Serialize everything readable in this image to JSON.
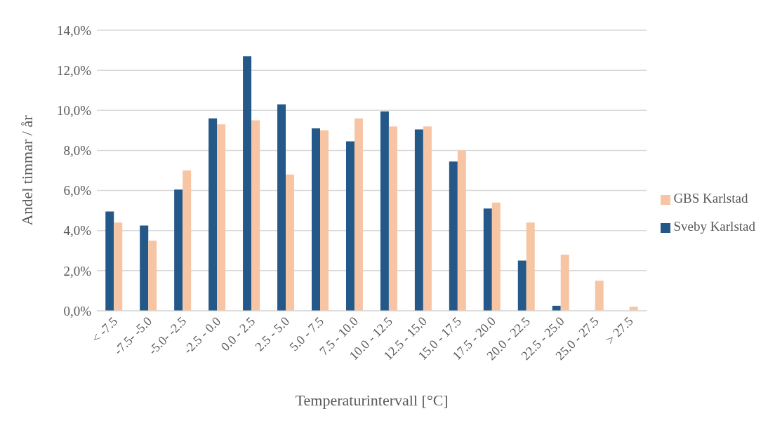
{
  "chart_data": {
    "type": "bar",
    "xlabel": "Temperaturintervall [°C]",
    "ylabel": "Andel timmar / år",
    "categories": [
      "< -7.5",
      "-7.5- -5.0",
      "-5.0- -2.5",
      "-2.5 - 0.0",
      "0.0 - 2.5",
      "2.5 - 5.0",
      "5.0 - 7.5",
      "7.5 - 10.0",
      "10.0 - 12.5",
      "12.5 - 15.0",
      "15.0 - 17.5",
      "17.5 - 20.0",
      "20.0 - 22.5",
      "22.5 - 25.0",
      "25.0 - 27.5",
      "> 27.5"
    ],
    "series": [
      {
        "name": "Sveby Karlstad",
        "color": "#235889",
        "values": [
          4.95,
          4.25,
          6.05,
          9.6,
          12.7,
          10.3,
          9.1,
          8.45,
          9.95,
          9.05,
          7.45,
          5.1,
          2.5,
          0.25,
          0,
          0
        ]
      },
      {
        "name": "GBS Karlstad",
        "color": "#f7c5a4",
        "values": [
          4.4,
          3.5,
          7.0,
          9.3,
          9.5,
          6.8,
          9.0,
          9.6,
          9.2,
          9.2,
          8.0,
          5.4,
          4.4,
          2.8,
          1.5,
          0.2
        ]
      }
    ],
    "ylim": [
      0,
      14
    ],
    "yticks": [
      {
        "value": 0,
        "label": "0,0%"
      },
      {
        "value": 2,
        "label": "2,0%"
      },
      {
        "value": 4,
        "label": "4,0%"
      },
      {
        "value": 6,
        "label": "6,0%"
      },
      {
        "value": 8,
        "label": "8,0%"
      },
      {
        "value": 10,
        "label": "10,0%"
      },
      {
        "value": 12,
        "label": "12,0%"
      },
      {
        "value": 14,
        "label": "14,0%"
      }
    ],
    "grid": "y",
    "legend": "right"
  }
}
